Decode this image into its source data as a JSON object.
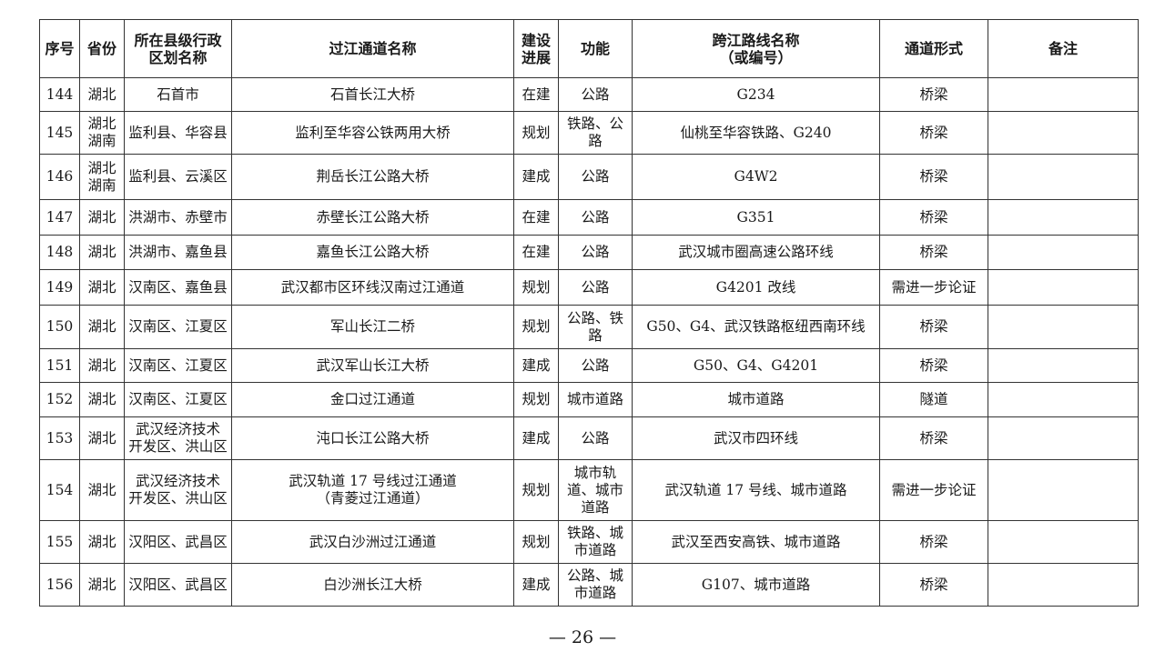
{
  "headers": [
    "序号",
    "省份",
    "所在县级行政\n区划名称",
    "过江通道名称",
    "建设\n进展",
    "功能",
    "跨江路线名称\n（或编号）",
    "通道形式",
    "备注"
  ],
  "rows": [
    [
      "144",
      "湖北",
      "石首市",
      "石首长江大桥",
      "在建",
      "公路",
      "G234",
      "桥梁",
      ""
    ],
    [
      "145",
      "湖北\n湖南",
      "监利县、华容县",
      "监利至华容公铁两用大桥",
      "规划",
      "铁路、公\n路",
      "仙桃至华容铁路、G240",
      "桥梁",
      ""
    ],
    [
      "146",
      "湖北\n湖南",
      "监利县、云溪区",
      "荆岳长江公路大桥",
      "建成",
      "公路",
      "G4W2",
      "桥梁",
      ""
    ],
    [
      "147",
      "湖北",
      "洪湖市、赤壁市",
      "赤壁长江公路大桥",
      "在建",
      "公路",
      "G351",
      "桥梁",
      ""
    ],
    [
      "148",
      "湖北",
      "洪湖市、嘉鱼县",
      "嘉鱼长江公路大桥",
      "在建",
      "公路",
      "武汉城市圈高速公路环线",
      "桥梁",
      ""
    ],
    [
      "149",
      "湖北",
      "汉南区、嘉鱼县",
      "武汉都市区环线汉南过江通道",
      "规划",
      "公路",
      "G4201 改线",
      "需进一步论证",
      ""
    ],
    [
      "150",
      "湖北",
      "汉南区、江夏区",
      "军山长江二桥",
      "规划",
      "公路、铁\n路",
      "G50、G4、武汉铁路枢纽西南环线",
      "桥梁",
      ""
    ],
    [
      "151",
      "湖北",
      "汉南区、江夏区",
      "武汉军山长江大桥",
      "建成",
      "公路",
      "G50、G4、G4201",
      "桥梁",
      ""
    ],
    [
      "152",
      "湖北",
      "汉南区、江夏区",
      "金口过江通道",
      "规划",
      "城市道路",
      "城市道路",
      "隧道",
      ""
    ],
    [
      "153",
      "湖北",
      "武汉经济技术\n开发区、洪山区",
      "沌口长江公路大桥",
      "建成",
      "公路",
      "武汉市四环线",
      "桥梁",
      ""
    ],
    [
      "154",
      "湖北",
      "武汉经济技术\n开发区、洪山区",
      "武汉轨道 17 号线过江通道\n（青菱过江通道）",
      "规划",
      "城市轨\n道、城市\n道路",
      "武汉轨道 17 号线、城市道路",
      "需进一步论证",
      ""
    ],
    [
      "155",
      "湖北",
      "汉阳区、武昌区",
      "武汉白沙洲过江通道",
      "规划",
      "铁路、城\n市道路",
      "武汉至西安高铁、城市道路",
      "桥梁",
      ""
    ],
    [
      "156",
      "湖北",
      "汉阳区、武昌区",
      "白沙洲长江大桥",
      "建成",
      "公路、城\n市道路",
      "G107、城市道路",
      "桥梁",
      ""
    ]
  ],
  "page_number": "— 26 —"
}
